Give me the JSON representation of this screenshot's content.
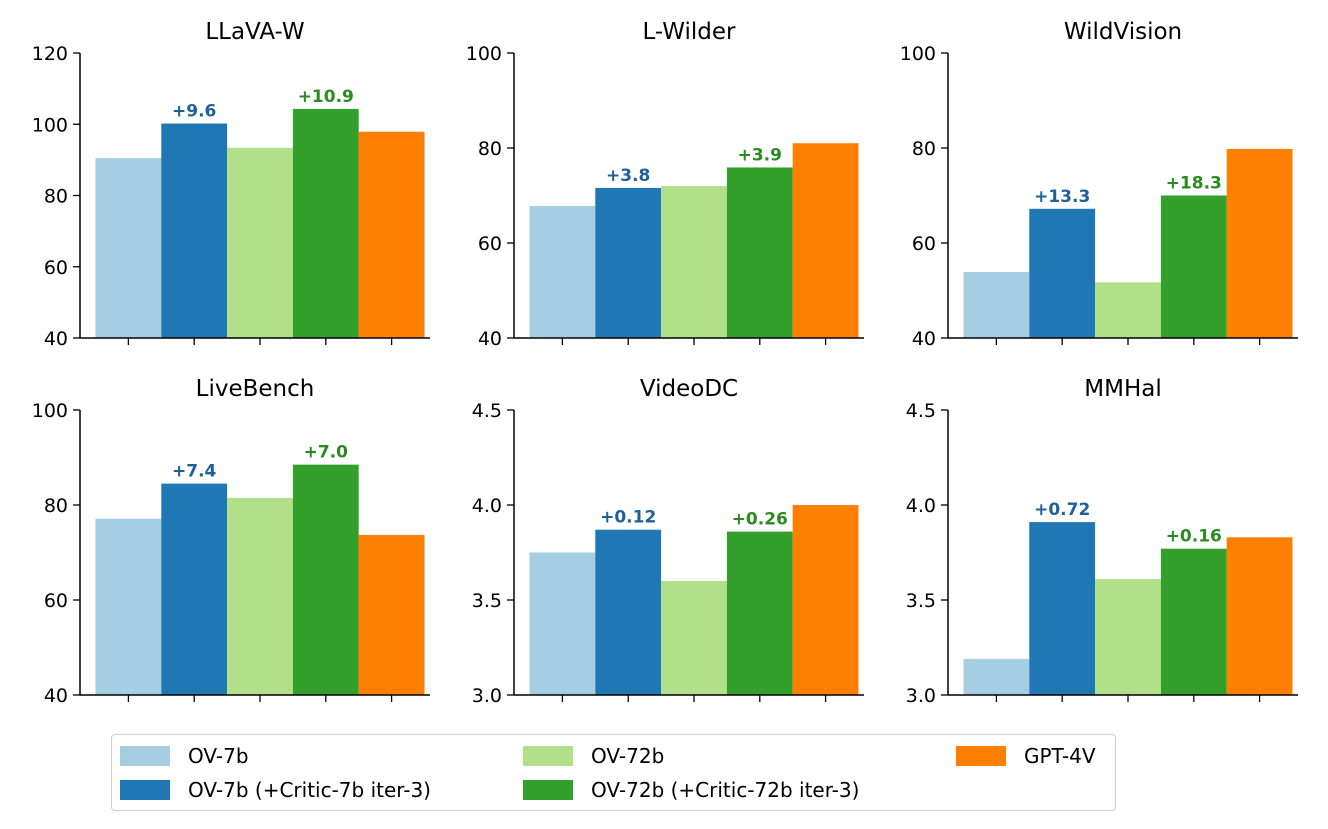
{
  "chart_data": [
    {
      "type": "bar",
      "title": "LLaVA-W",
      "series_names": [
        "OV-7b",
        "OV-7b (+Critic-7b iter-3)",
        "OV-72b",
        "OV-72b (+Critic-72b iter-3)",
        "GPT-4V"
      ],
      "values": [
        90.5,
        100.2,
        93.4,
        104.3,
        97.9
      ],
      "ylim": [
        40,
        120
      ],
      "yticks": [
        "40",
        "60",
        "80",
        "100",
        "120"
      ],
      "annotations": [
        {
          "bar_index": 1,
          "text": "+9.6",
          "color": "#1f5f9a"
        },
        {
          "bar_index": 3,
          "text": "+10.9",
          "color": "#2b8a21"
        }
      ]
    },
    {
      "type": "bar",
      "title": "L-Wilder",
      "series_names": [
        "OV-7b",
        "OV-7b (+Critic-7b iter-3)",
        "OV-72b",
        "OV-72b (+Critic-72b iter-3)",
        "GPT-4V"
      ],
      "values": [
        67.8,
        71.6,
        72.0,
        75.9,
        81.0
      ],
      "ylim": [
        40,
        100
      ],
      "yticks": [
        "40",
        "60",
        "80",
        "100"
      ],
      "annotations": [
        {
          "bar_index": 1,
          "text": "+3.8",
          "color": "#1f5f9a"
        },
        {
          "bar_index": 3,
          "text": "+3.9",
          "color": "#2b8a21"
        }
      ]
    },
    {
      "type": "bar",
      "title": "WildVision",
      "series_names": [
        "OV-7b",
        "OV-7b (+Critic-7b iter-3)",
        "OV-72b",
        "OV-72b (+Critic-72b iter-3)",
        "GPT-4V"
      ],
      "values": [
        53.9,
        67.2,
        51.7,
        70.0,
        79.8
      ],
      "ylim": [
        40,
        100
      ],
      "yticks": [
        "40",
        "60",
        "80",
        "100"
      ],
      "annotations": [
        {
          "bar_index": 1,
          "text": "+13.3",
          "color": "#1f5f9a"
        },
        {
          "bar_index": 3,
          "text": "+18.3",
          "color": "#2b8a21"
        }
      ]
    },
    {
      "type": "bar",
      "title": "LiveBench",
      "series_names": [
        "OV-7b",
        "OV-7b (+Critic-7b iter-3)",
        "OV-72b",
        "OV-72b (+Critic-72b iter-3)",
        "GPT-4V"
      ],
      "values": [
        77.1,
        84.5,
        81.5,
        88.5,
        73.7
      ],
      "ylim": [
        40,
        100
      ],
      "yticks": [
        "40",
        "60",
        "80",
        "100"
      ],
      "annotations": [
        {
          "bar_index": 1,
          "text": "+7.4",
          "color": "#1f5f9a"
        },
        {
          "bar_index": 3,
          "text": "+7.0",
          "color": "#2b8a21"
        }
      ]
    },
    {
      "type": "bar",
      "title": "VideoDC",
      "series_names": [
        "OV-7b",
        "OV-7b (+Critic-7b iter-3)",
        "OV-72b",
        "OV-72b (+Critic-72b iter-3)",
        "GPT-4V"
      ],
      "values": [
        3.75,
        3.87,
        3.6,
        3.86,
        4.0
      ],
      "ylim": [
        3.0,
        4.5
      ],
      "yticks": [
        "3.0",
        "3.5",
        "4.0",
        "4.5"
      ],
      "annotations": [
        {
          "bar_index": 1,
          "text": "+0.12",
          "color": "#1f5f9a"
        },
        {
          "bar_index": 3,
          "text": "+0.26",
          "color": "#2b8a21"
        }
      ]
    },
    {
      "type": "bar",
      "title": "MMHal",
      "series_names": [
        "OV-7b",
        "OV-7b (+Critic-7b iter-3)",
        "OV-72b",
        "OV-72b (+Critic-72b iter-3)",
        "GPT-4V"
      ],
      "values": [
        3.19,
        3.91,
        3.61,
        3.77,
        3.83
      ],
      "ylim": [
        3.0,
        4.5
      ],
      "yticks": [
        "3.0",
        "3.5",
        "4.0",
        "4.5"
      ],
      "annotations": [
        {
          "bar_index": 1,
          "text": "+0.72",
          "color": "#1f5f9a"
        },
        {
          "bar_index": 3,
          "text": "+0.16",
          "color": "#2b8a21"
        }
      ]
    }
  ],
  "colors": [
    "#a6cee3",
    "#1f78b4",
    "#b2df8a",
    "#33a02c",
    "#ff7f00"
  ],
  "legend": [
    {
      "label": "OV-7b",
      "color": "#a6cee3"
    },
    {
      "label": "OV-7b (+Critic-7b iter-3)",
      "color": "#1f78b4"
    },
    {
      "label": "OV-72b",
      "color": "#b2df8a"
    },
    {
      "label": "OV-72b (+Critic-72b iter-3)",
      "color": "#33a02c"
    },
    {
      "label": "GPT-4V",
      "color": "#ff7f00"
    }
  ]
}
